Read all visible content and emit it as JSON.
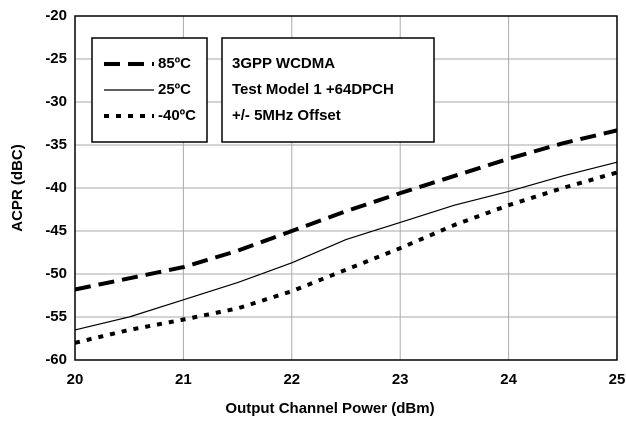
{
  "chart_data": {
    "type": "line",
    "xlabel": "Output Channel Power (dBm)",
    "ylabel": "ACPR (dBC)",
    "x": [
      20,
      20.5,
      21,
      21.5,
      22,
      22.5,
      23,
      23.5,
      24,
      24.5,
      25
    ],
    "series": [
      {
        "name": "85ºC",
        "color": "#000000",
        "dash": "dashed",
        "values": [
          -51.8,
          -50.5,
          -49.2,
          -47.3,
          -45,
          -42.7,
          -40.6,
          -38.6,
          -36.6,
          -34.8,
          -33.3
        ]
      },
      {
        "name": "25ºC",
        "color": "#000000",
        "dash": "solid",
        "values": [
          -56.5,
          -55,
          -53,
          -51,
          -48.7,
          -46,
          -44,
          -42,
          -40.4,
          -38.6,
          -37
        ]
      },
      {
        "name": "-40ºC",
        "color": "#000000",
        "dash": "dotted",
        "values": [
          -58,
          -56.5,
          -55.3,
          -54,
          -52,
          -49.5,
          -47,
          -44.3,
          -42,
          -40,
          -38.2
        ]
      }
    ],
    "annotation": [
      "3GPP WCDMA",
      "Test Model 1 +64DPCH",
      " +/- 5MHz Offset"
    ],
    "xlim": [
      20,
      25
    ],
    "xticks": [
      20,
      21,
      22,
      23,
      24,
      25
    ],
    "ylim": [
      -60,
      -20
    ],
    "yticks": [
      -20,
      -25,
      -30,
      -35,
      -40,
      -45,
      -50,
      -55,
      -60
    ],
    "grid": true,
    "legend": "upper left"
  }
}
